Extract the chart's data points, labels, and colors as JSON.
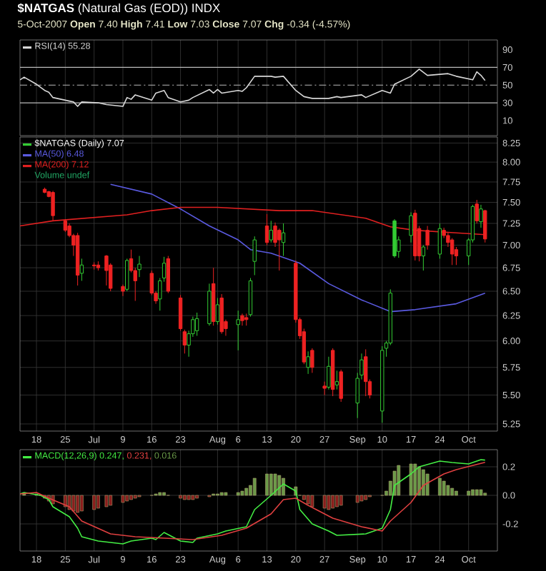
{
  "chart_data": [
    {
      "type": "line",
      "title": "**$NATGAS** (Natural Gas (EOD)) INDX",
      "subtitle": "5-Oct-2007 **Open** 7.40 **High** 7.41 **Low** 7.03 **Close** 7.07 **Chg** -0.34 (-4.57%)",
      "xlim": [
        "2007-06-14",
        "2007-10-08"
      ],
      "ylim": [
        -7,
        101
      ],
      "yticks": [
        10,
        30,
        50,
        70,
        90
      ],
      "xticks": [
        {
          "value": "2007-06-18",
          "label": null
        },
        {
          "value": "2007-06-25",
          "label": null
        },
        {
          "value": "2007-07-02",
          "label": null
        },
        {
          "value": "2007-07-09",
          "label": null
        },
        {
          "value": "2007-07-16",
          "label": null
        },
        {
          "value": "2007-07-23",
          "label": null
        },
        {
          "value": "2007-08-01",
          "label": null
        },
        {
          "value": "2007-08-06",
          "label": null
        },
        {
          "value": "2007-08-13",
          "label": null
        },
        {
          "value": "2007-08-20",
          "label": null
        },
        {
          "value": "2007-08-27",
          "label": null
        },
        {
          "value": "2007-09-04",
          "label": null
        },
        {
          "value": "2007-09-10",
          "label": null
        },
        {
          "value": "2007-09-17",
          "label": null
        },
        {
          "value": "2007-09-24",
          "label": null
        },
        {
          "value": "2007-10-01",
          "label": null
        }
      ],
      "tick_labels": "y",
      "grid": "x",
      "legend": "top left",
      "ref_lines": [
        {
          "axis": "y",
          "value": 70,
          "color": "#bbbbbb",
          "line_style": "solid"
        },
        {
          "axis": "y",
          "value": 50,
          "color": "#bbbbbb",
          "line_style": "dashed"
        },
        {
          "axis": "y",
          "value": 30,
          "color": "#bbbbbb",
          "line_style": "solid"
        }
      ],
      "series": [
        {
          "name": "RSI(14) 55.28",
          "color": "#d8d8d8",
          "x": [
            "2007-06-14",
            "2007-06-15",
            "2007-06-18",
            "2007-06-20",
            "2007-06-21",
            "2007-06-22",
            "2007-06-26",
            "2007-06-27",
            "2007-06-28",
            "2007-06-29",
            "2007-07-03",
            "2007-07-05",
            "2007-07-09",
            "2007-07-10",
            "2007-07-11",
            "2007-07-12",
            "2007-07-16",
            "2007-07-17",
            "2007-07-19",
            "2007-07-20",
            "2007-07-23",
            "2007-07-25",
            "2007-07-26",
            "2007-07-30",
            "2007-07-31",
            "2007-08-01",
            "2007-08-02",
            "2007-08-06",
            "2007-08-07",
            "2007-08-08",
            "2007-08-10",
            "2007-08-14",
            "2007-08-15",
            "2007-08-17",
            "2007-08-20",
            "2007-08-22",
            "2007-08-24",
            "2007-08-28",
            "2007-08-30",
            "2007-08-31",
            "2007-09-05",
            "2007-09-06",
            "2007-09-10",
            "2007-09-12",
            "2007-09-13",
            "2007-09-17",
            "2007-09-19",
            "2007-09-21",
            "2007-09-26",
            "2007-09-28",
            "2007-10-02",
            "2007-10-03",
            "2007-10-04",
            "2007-10-05"
          ],
          "values": [
            56,
            59,
            51,
            44,
            42,
            36,
            32,
            31,
            26,
            31,
            30,
            28,
            26,
            36,
            34,
            39,
            33,
            41,
            44,
            36,
            31,
            33,
            36,
            45,
            41,
            45,
            41,
            44,
            43,
            47,
            60,
            60,
            59,
            60,
            44,
            37,
            35,
            35,
            37,
            36,
            39,
            36,
            44,
            41,
            51,
            60,
            68,
            61,
            63,
            60,
            56,
            65,
            61,
            55.28
          ]
        }
      ]
    },
    {
      "type": "candlestick",
      "legend_title": "$NATGAS (Daily) 7.07",
      "log": true,
      "grid": true,
      "legend": "top left",
      "xlim": [
        "2007-06-14",
        "2007-10-08"
      ],
      "ylim": [
        5.19,
        8.33
      ],
      "xticks": [
        {
          "value": "2007-06-18",
          "label": "18"
        },
        {
          "value": "2007-06-25",
          "label": "25"
        },
        {
          "value": "2007-07-02",
          "label": "Jul"
        },
        {
          "value": "2007-07-09",
          "label": "9"
        },
        {
          "value": "2007-07-16",
          "label": "16"
        },
        {
          "value": "2007-07-23",
          "label": "23"
        },
        {
          "value": "2007-08-01",
          "label": "Aug"
        },
        {
          "value": "2007-08-06",
          "label": "6"
        },
        {
          "value": "2007-08-13",
          "label": "13"
        },
        {
          "value": "2007-08-20",
          "label": "20"
        },
        {
          "value": "2007-08-27",
          "label": "27"
        },
        {
          "value": "2007-09-04",
          "label": "Sep"
        },
        {
          "value": "2007-09-10",
          "label": "10"
        },
        {
          "value": "2007-09-17",
          "label": "17"
        },
        {
          "value": "2007-09-24",
          "label": "24"
        },
        {
          "value": "2007-10-01",
          "label": "Oct"
        }
      ],
      "yticks": [
        {
          "value": 5.25,
          "label": "5.25"
        },
        {
          "value": 5.5,
          "label": "5.50"
        },
        {
          "value": 5.75,
          "label": "5.75"
        },
        {
          "value": 6,
          "label": "6.00"
        },
        {
          "value": 6.25,
          "label": "6.25"
        },
        {
          "value": 6.5,
          "label": "6.50"
        },
        {
          "value": 6.75,
          "label": "6.75"
        },
        {
          "value": 7,
          "label": "7.00"
        },
        {
          "value": 7.25,
          "label": "7.25"
        },
        {
          "value": 7.5,
          "label": "7.50"
        },
        {
          "value": 7.75,
          "label": "7.75"
        },
        {
          "value": 8,
          "label": "8.00"
        },
        {
          "value": 8.25,
          "label": "8.25"
        }
      ],
      "annotations": [
        "Volume undef"
      ],
      "x": [
        "2007-06-20",
        "2007-06-21",
        "2007-06-22",
        "2007-06-25",
        "2007-06-26",
        "2007-06-27",
        "2007-06-28",
        "2007-06-29",
        "2007-07-02",
        "2007-07-03",
        "2007-07-05",
        "2007-07-06",
        "2007-07-09",
        "2007-07-10",
        "2007-07-11",
        "2007-07-12",
        "2007-07-13",
        "2007-07-16",
        "2007-07-17",
        "2007-07-18",
        "2007-07-19",
        "2007-07-20",
        "2007-07-23",
        "2007-07-24",
        "2007-07-25",
        "2007-07-26",
        "2007-07-27",
        "2007-07-30",
        "2007-07-31",
        "2007-08-01",
        "2007-08-02",
        "2007-08-03",
        "2007-08-06",
        "2007-08-07",
        "2007-08-08",
        "2007-08-09",
        "2007-08-10",
        "2007-08-13",
        "2007-08-14",
        "2007-08-15",
        "2007-08-16",
        "2007-08-17",
        "2007-08-20",
        "2007-08-21",
        "2007-08-22",
        "2007-08-23",
        "2007-08-24",
        "2007-08-27",
        "2007-08-28",
        "2007-08-29",
        "2007-08-30",
        "2007-08-31",
        "2007-09-04",
        "2007-09-05",
        "2007-09-06",
        "2007-09-07",
        "2007-09-10",
        "2007-09-11",
        "2007-09-12",
        "2007-09-13",
        "2007-09-14",
        "2007-09-17",
        "2007-09-18",
        "2007-09-19",
        "2007-09-20",
        "2007-09-21",
        "2007-09-24",
        "2007-09-25",
        "2007-09-26",
        "2007-09-27",
        "2007-09-28",
        "2007-10-01",
        "2007-10-02",
        "2007-10-03",
        "2007-10-04",
        "2007-10-05"
      ],
      "ohlc": [
        [
          7.66,
          7.68,
          7.61,
          7.62
        ],
        [
          7.63,
          7.64,
          7.56,
          7.57
        ],
        [
          7.62,
          7.64,
          7.28,
          7.34
        ],
        [
          7.28,
          7.3,
          7.15,
          7.17
        ],
        [
          7.22,
          7.25,
          7.09,
          7.11
        ],
        [
          7.11,
          7.13,
          6.88,
          7.0
        ],
        [
          7.11,
          7.14,
          6.56,
          6.67
        ],
        [
          6.69,
          6.85,
          6.61,
          6.78
        ],
        [
          6.78,
          6.81,
          6.73,
          6.77
        ],
        [
          6.78,
          6.82,
          6.72,
          6.75
        ],
        [
          6.88,
          6.89,
          6.56,
          6.72
        ],
        [
          6.78,
          6.8,
          6.5,
          6.53
        ],
        [
          6.55,
          6.57,
          6.45,
          6.5
        ],
        [
          6.52,
          6.85,
          6.5,
          6.83
        ],
        [
          6.85,
          6.95,
          6.7,
          6.72
        ],
        [
          6.72,
          6.75,
          6.4,
          6.61
        ],
        [
          6.73,
          6.88,
          6.65,
          6.79
        ],
        [
          6.69,
          6.72,
          6.46,
          6.48
        ],
        [
          6.48,
          6.5,
          6.37,
          6.4
        ],
        [
          6.42,
          6.64,
          6.3,
          6.61
        ],
        [
          6.64,
          6.87,
          6.6,
          6.8
        ],
        [
          6.85,
          6.88,
          6.48,
          6.5
        ],
        [
          6.43,
          6.46,
          6.1,
          6.12
        ],
        [
          6.09,
          6.11,
          5.88,
          5.96
        ],
        [
          5.96,
          6.1,
          5.85,
          6.07
        ],
        [
          6.07,
          6.24,
          6.04,
          6.21
        ],
        [
          6.1,
          6.28,
          6.05,
          6.22
        ],
        [
          6.17,
          6.58,
          6.15,
          6.5
        ],
        [
          6.58,
          6.75,
          6.15,
          6.19
        ],
        [
          6.19,
          6.43,
          6.16,
          6.36
        ],
        [
          6.43,
          6.47,
          6.07,
          6.09
        ],
        [
          6.19,
          6.21,
          6.05,
          6.12
        ],
        [
          6.16,
          6.3,
          5.91,
          6.21
        ],
        [
          6.25,
          6.27,
          6.15,
          6.2
        ],
        [
          6.23,
          6.27,
          6.15,
          6.21
        ],
        [
          6.26,
          6.64,
          6.24,
          6.61
        ],
        [
          6.82,
          7.1,
          6.67,
          7.06
        ],
        [
          7.22,
          7.36,
          7.0,
          7.03
        ],
        [
          7.06,
          7.28,
          7.03,
          7.17
        ],
        [
          7.22,
          7.26,
          6.98,
          7.03
        ],
        [
          7.17,
          7.19,
          6.72,
          7.06
        ],
        [
          7.03,
          7.25,
          6.88,
          7.14
        ],
        [
          6.8,
          6.83,
          6.18,
          6.21
        ],
        [
          6.21,
          6.23,
          6.02,
          6.05
        ],
        [
          6.09,
          6.12,
          5.78,
          5.8
        ],
        [
          5.75,
          5.9,
          5.69,
          5.85
        ],
        [
          5.91,
          5.93,
          5.7,
          5.75
        ],
        [
          5.58,
          5.62,
          5.5,
          5.56
        ],
        [
          5.57,
          5.85,
          5.55,
          5.76
        ],
        [
          5.91,
          5.93,
          5.49,
          5.55
        ],
        [
          5.59,
          5.72,
          5.55,
          5.62
        ],
        [
          5.71,
          5.73,
          5.44,
          5.47
        ],
        [
          5.43,
          5.7,
          5.3,
          5.65
        ],
        [
          5.68,
          5.88,
          5.64,
          5.82
        ],
        [
          5.85,
          5.92,
          5.49,
          5.62
        ],
        [
          5.62,
          5.64,
          5.47,
          5.5
        ],
        [
          5.36,
          5.95,
          5.26,
          5.91
        ],
        [
          5.93,
          6.0,
          5.85,
          5.98
        ],
        [
          5.98,
          6.52,
          5.96,
          6.48
        ],
        [
          7.28,
          7.3,
          6.86,
          6.88
        ],
        [
          6.93,
          7.1,
          6.86,
          7.06
        ],
        [
          7.11,
          7.38,
          7.03,
          7.34
        ],
        [
          7.37,
          7.41,
          6.83,
          6.88
        ],
        [
          7.19,
          7.22,
          6.82,
          6.88
        ],
        [
          6.88,
          7.0,
          6.72,
          6.98
        ],
        [
          7.17,
          7.22,
          6.95,
          7.0
        ],
        [
          6.9,
          7.25,
          6.85,
          7.19
        ],
        [
          7.17,
          7.2,
          7.08,
          7.11
        ],
        [
          7.11,
          7.14,
          6.98,
          7.03
        ],
        [
          7.06,
          7.08,
          6.78,
          6.9
        ],
        [
          6.95,
          6.98,
          6.78,
          6.88
        ],
        [
          6.88,
          7.08,
          6.78,
          7.06
        ],
        [
          7.06,
          7.47,
          7.03,
          7.45
        ],
        [
          7.48,
          7.53,
          7.25,
          7.28
        ],
        [
          7.27,
          7.47,
          7.2,
          7.42
        ],
        [
          7.4,
          7.41,
          7.03,
          7.07
        ]
      ],
      "colors": [
        "#ee2222",
        "#ee2222",
        "#ee2222",
        "#ee2222",
        "#ee2222",
        "#ee2222",
        "#ee2222",
        "#33cc33",
        "#ee2222",
        "#ee2222",
        "#ee2222",
        "#ee2222",
        "#ee2222",
        "#33cc33",
        "#ee2222",
        "#ee2222",
        "#33cc33",
        "#ee2222",
        "#ee2222",
        "#33cc33",
        "#33cc33",
        "#ee2222",
        "#ee2222",
        "#ee2222",
        "#33cc33",
        "#33cc33",
        "#33cc33",
        "#33cc33",
        "#ee2222",
        "#33cc33",
        "#ee2222",
        "#ee2222",
        "#33cc33",
        "#ee2222",
        "#ee2222",
        "#33cc33",
        "#33cc33",
        "#ee2222",
        "#33cc33",
        "#ee2222",
        "#ee2222",
        "#33cc33",
        "#ee2222",
        "#ee2222",
        "#ee2222",
        "#33cc33",
        "#ee2222",
        "#ee2222",
        "#33cc33",
        "#ee2222",
        "#33cc33",
        "#ee2222",
        "#33cc33",
        "#33cc33",
        "#ee2222",
        "#ee2222",
        "#33cc33",
        "#33cc33",
        "#33cc33",
        "#33cc33",
        "#33cc33",
        "#33cc33",
        "#ee2222",
        "#ee2222",
        "#33cc33",
        "#ee2222",
        "#33cc33",
        "#ee2222",
        "#ee2222",
        "#ee2222",
        "#ee2222",
        "#33cc33",
        "#33cc33",
        "#ee2222",
        "#33cc33",
        "#ee2222"
      ],
      "series": [
        {
          "name": "MA(50) 6.48",
          "type": "line",
          "color": "#5a5ae0",
          "x": [
            "2007-07-06",
            "2007-07-16",
            "2007-07-23",
            "2007-07-30",
            "2007-08-06",
            "2007-08-09",
            "2007-08-14",
            "2007-08-21",
            "2007-08-28",
            "2007-09-05",
            "2007-09-12",
            "2007-09-18",
            "2007-09-28",
            "2007-10-05"
          ],
          "values": [
            7.72,
            7.6,
            7.42,
            7.22,
            7.06,
            6.95,
            6.91,
            6.8,
            6.58,
            6.41,
            6.29,
            6.31,
            6.37,
            6.48
          ]
        },
        {
          "name": "MA(200) 7.12",
          "type": "line",
          "color": "#e02020",
          "x": [
            "2007-06-14",
            "2007-06-22",
            "2007-07-10",
            "2007-07-16",
            "2007-07-23",
            "2007-08-01",
            "2007-08-16",
            "2007-08-24",
            "2007-09-06",
            "2007-09-12",
            "2007-09-18",
            "2007-09-28",
            "2007-10-05"
          ],
          "values": [
            7.22,
            7.28,
            7.35,
            7.4,
            7.44,
            7.44,
            7.4,
            7.4,
            7.31,
            7.21,
            7.17,
            7.14,
            7.12
          ]
        }
      ]
    },
    {
      "type": "line",
      "grid": true,
      "legend": "top left",
      "xlim": [
        "2007-06-14",
        "2007-10-08"
      ],
      "ylim": [
        -0.39,
        0.32
      ],
      "xticks": [
        {
          "value": "2007-06-18",
          "label": "18"
        },
        {
          "value": "2007-06-25",
          "label": "25"
        },
        {
          "value": "2007-07-02",
          "label": "Jul"
        },
        {
          "value": "2007-07-09",
          "label": "9"
        },
        {
          "value": "2007-07-16",
          "label": "16"
        },
        {
          "value": "2007-07-23",
          "label": "23"
        },
        {
          "value": "2007-08-01",
          "label": "Aug"
        },
        {
          "value": "2007-08-06",
          "label": "6"
        },
        {
          "value": "2007-08-13",
          "label": "13"
        },
        {
          "value": "2007-08-20",
          "label": "20"
        },
        {
          "value": "2007-08-27",
          "label": "27"
        },
        {
          "value": "2007-09-04",
          "label": "Sep"
        },
        {
          "value": "2007-09-10",
          "label": "10"
        },
        {
          "value": "2007-09-17",
          "label": "17"
        },
        {
          "value": "2007-09-24",
          "label": "24"
        },
        {
          "value": "2007-10-01",
          "label": "Oct"
        }
      ],
      "yticks": [
        -0.2,
        {
          "value": 0,
          "label": "0.0"
        },
        0.2
      ],
      "series": [
        {
          "name": "MACD(12,26,9) 0.247,",
          "type": "line",
          "color": "#44ee44",
          "x": [
            "2007-06-14",
            "2007-06-15",
            "2007-06-19",
            "2007-06-21",
            "2007-06-22",
            "2007-06-26",
            "2007-06-28",
            "2007-06-29",
            "2007-07-03",
            "2007-07-09",
            "2007-07-11",
            "2007-07-16",
            "2007-07-17",
            "2007-07-19",
            "2007-07-23",
            "2007-07-26",
            "2007-07-27",
            "2007-08-01",
            "2007-08-03",
            "2007-08-08",
            "2007-08-10",
            "2007-08-14",
            "2007-08-17",
            "2007-08-20",
            "2007-08-21",
            "2007-08-24",
            "2007-08-28",
            "2007-08-30",
            "2007-09-06",
            "2007-09-10",
            "2007-09-12",
            "2007-09-13",
            "2007-09-17",
            "2007-09-19",
            "2007-09-24",
            "2007-09-27",
            "2007-10-01",
            "2007-10-03",
            "2007-10-04",
            "2007-10-05"
          ],
          "values": [
            0.01,
            0.02,
            0,
            -0.03,
            -0.08,
            -0.15,
            -0.23,
            -0.29,
            -0.32,
            -0.34,
            -0.32,
            -0.3,
            -0.31,
            -0.26,
            -0.32,
            -0.33,
            -0.3,
            -0.27,
            -0.25,
            -0.22,
            -0.1,
            0,
            0.08,
            0.03,
            -0.1,
            -0.2,
            -0.25,
            -0.28,
            -0.27,
            -0.23,
            -0.1,
            0.07,
            0.15,
            0.2,
            0.24,
            0.23,
            0.22,
            0.24,
            0.25,
            0.247
          ]
        },
        {
          "name": "0.231,",
          "type": "line",
          "color": "#e04040",
          "x": [
            "2007-06-14",
            "2007-06-18",
            "2007-06-21",
            "2007-06-26",
            "2007-06-29",
            "2007-07-06",
            "2007-07-12",
            "2007-07-19",
            "2007-07-26",
            "2007-08-02",
            "2007-08-08",
            "2007-08-14",
            "2007-08-17",
            "2007-08-20",
            "2007-08-23",
            "2007-08-29",
            "2007-09-05",
            "2007-09-10",
            "2007-09-12",
            "2007-09-17",
            "2007-09-20",
            "2007-09-25",
            "2007-09-28",
            "2007-10-05"
          ],
          "values": [
            0.01,
            0.02,
            -0.02,
            -0.08,
            -0.18,
            -0.27,
            -0.29,
            -0.3,
            -0.31,
            -0.28,
            -0.23,
            -0.13,
            -0.03,
            -0.02,
            -0.07,
            -0.16,
            -0.22,
            -0.25,
            -0.18,
            -0.05,
            0.07,
            0.15,
            0.18,
            0.231
          ]
        },
        {
          "name": "0.016",
          "type": "bar",
          "color": "#6a9a48",
          "x": [
            "2007-06-15",
            "2007-06-18",
            "2007-06-19",
            "2007-06-20",
            "2007-06-21",
            "2007-06-22",
            "2007-06-25",
            "2007-06-26",
            "2007-06-27",
            "2007-06-28",
            "2007-06-29",
            "2007-07-02",
            "2007-07-03",
            "2007-07-05",
            "2007-07-06",
            "2007-07-09",
            "2007-07-10",
            "2007-07-11",
            "2007-07-12",
            "2007-07-13",
            "2007-07-16",
            "2007-07-17",
            "2007-07-18",
            "2007-07-19",
            "2007-07-20",
            "2007-07-23",
            "2007-07-24",
            "2007-07-25",
            "2007-07-26",
            "2007-07-27",
            "2007-07-30",
            "2007-07-31",
            "2007-08-01",
            "2007-08-02",
            "2007-08-03",
            "2007-08-06",
            "2007-08-07",
            "2007-08-08",
            "2007-08-09",
            "2007-08-10",
            "2007-08-13",
            "2007-08-14",
            "2007-08-15",
            "2007-08-16",
            "2007-08-17",
            "2007-08-20",
            "2007-08-21",
            "2007-08-22",
            "2007-08-23",
            "2007-08-24",
            "2007-08-27",
            "2007-08-28",
            "2007-08-29",
            "2007-08-30",
            "2007-08-31",
            "2007-09-04",
            "2007-09-05",
            "2007-09-06",
            "2007-09-07",
            "2007-09-10",
            "2007-09-11",
            "2007-09-12",
            "2007-09-13",
            "2007-09-14",
            "2007-09-17",
            "2007-09-18",
            "2007-09-19",
            "2007-09-20",
            "2007-09-21",
            "2007-09-24",
            "2007-09-25",
            "2007-09-26",
            "2007-09-27",
            "2007-09-28",
            "2007-10-01",
            "2007-10-02",
            "2007-10-03",
            "2007-10-04",
            "2007-10-05"
          ],
          "values": [
            0.01,
            0.01,
            0,
            -0.02,
            -0.04,
            -0.06,
            -0.08,
            -0.1,
            -0.11,
            -0.12,
            -0.11,
            -0.1,
            -0.09,
            -0.08,
            -0.07,
            -0.05,
            -0.04,
            -0.03,
            -0.02,
            -0.01,
            0,
            0.01,
            0.02,
            0.02,
            0,
            -0.02,
            -0.03,
            -0.03,
            -0.03,
            -0.02,
            -0.01,
            0.01,
            0.01,
            0.02,
            0.02,
            0.02,
            0.03,
            0.05,
            0.07,
            0.12,
            0.15,
            0.15,
            0.15,
            0.14,
            0.12,
            0.06,
            0,
            -0.03,
            -0.06,
            -0.08,
            -0.09,
            -0.1,
            -0.09,
            -0.08,
            -0.07,
            -0.05,
            -0.04,
            -0.03,
            -0.01,
            0,
            0.03,
            0.1,
            0.17,
            0.21,
            0.22,
            0.22,
            0.2,
            0.18,
            0.15,
            0.12,
            0.1,
            0.07,
            0.05,
            0.03,
            0.03,
            0.04,
            0.04,
            0.04,
            0.016
          ],
          "colors": [
            "#6a9a48",
            "#6a9a48",
            "#6a9a48",
            "#8a1c1c",
            "#8a1c1c",
            "#8a1c1c",
            "#8a1c1c",
            "#8a1c1c",
            "#8a1c1c",
            "#8a1c1c",
            "#8a1c1c",
            "#8a1c1c",
            "#8a1c1c",
            "#8a1c1c",
            "#8a1c1c",
            "#8a1c1c",
            "#8a1c1c",
            "#8a1c1c",
            "#8a1c1c",
            "#8a1c1c",
            "#6a9a48",
            "#6a9a48",
            "#6a9a48",
            "#6a9a48",
            "#6a9a48",
            "#8a1c1c",
            "#8a1c1c",
            "#8a1c1c",
            "#8a1c1c",
            "#8a1c1c",
            "#8a1c1c",
            "#6a9a48",
            "#6a9a48",
            "#6a9a48",
            "#6a9a48",
            "#6a9a48",
            "#6a9a48",
            "#6a9a48",
            "#6a9a48",
            "#6a9a48",
            "#6a9a48",
            "#6a9a48",
            "#6a9a48",
            "#6a9a48",
            "#6a9a48",
            "#6a9a48",
            "#6a9a48",
            "#8a1c1c",
            "#8a1c1c",
            "#8a1c1c",
            "#8a1c1c",
            "#8a1c1c",
            "#8a1c1c",
            "#8a1c1c",
            "#8a1c1c",
            "#8a1c1c",
            "#8a1c1c",
            "#8a1c1c",
            "#8a1c1c",
            "#6a9a48",
            "#6a9a48",
            "#6a9a48",
            "#6a9a48",
            "#6a9a48",
            "#6a9a48",
            "#6a9a48",
            "#6a9a48",
            "#6a9a48",
            "#6a9a48",
            "#6a9a48",
            "#6a9a48",
            "#6a9a48",
            "#6a9a48",
            "#6a9a48",
            "#6a9a48",
            "#6a9a48",
            "#6a9a48",
            "#6a9a48",
            "#6a9a48"
          ]
        }
      ]
    }
  ]
}
